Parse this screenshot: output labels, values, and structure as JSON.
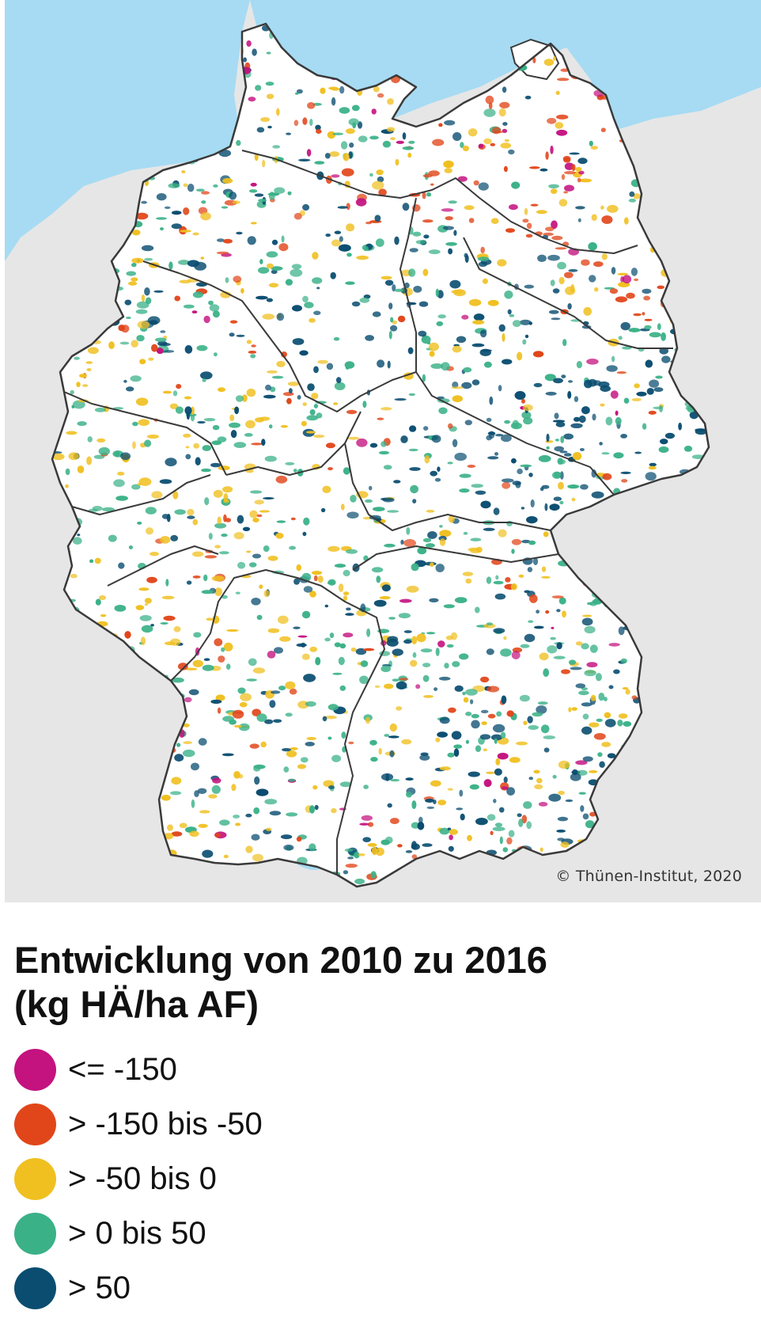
{
  "map": {
    "copyright": "© Thünen-Institut, 2020",
    "colors": {
      "sea": "#a6dbf3",
      "land_outside": "#e6e6e6",
      "germany": "#ffffff",
      "border": "#3a3a3a"
    }
  },
  "legend": {
    "title_line1": "Entwicklung von 2010 zu 2016",
    "title_line2": "(kg HÄ/ha AF)",
    "items": [
      {
        "label": "<= -150",
        "color": "#c4127f"
      },
      {
        "label": "> -150 bis -50",
        "color": "#e1461a"
      },
      {
        "label": "> -50 bis 0",
        "color": "#f0c021"
      },
      {
        "label": "> 0 bis 50",
        "color": "#3bb188"
      },
      {
        "label": "> 50",
        "color": "#0a4d70"
      }
    ]
  }
}
